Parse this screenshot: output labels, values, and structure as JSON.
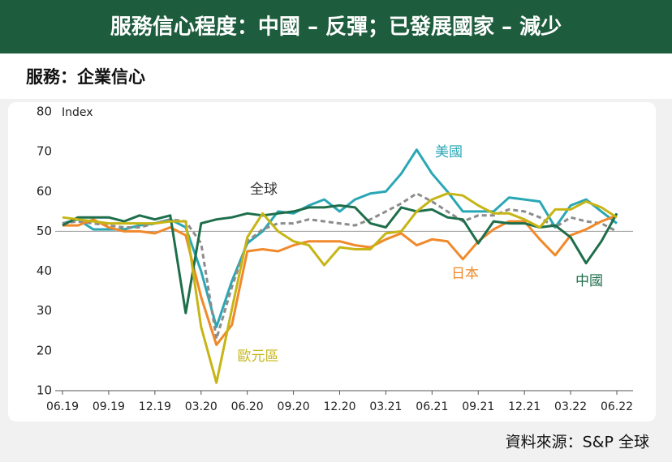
{
  "chart_data": {
    "type": "line",
    "title": "服務信心程度：中國 – 反彈；已發展國家 – 減少",
    "subtitle": "服務：企業信心",
    "y_label": "Index",
    "source": "資料來源：S&P 全球",
    "categories": [
      "06.19",
      null,
      null,
      "09.19",
      null,
      null,
      "12.19",
      null,
      null,
      "03.20",
      null,
      null,
      "06.20",
      null,
      null,
      "09.20",
      null,
      null,
      "12.20",
      null,
      null,
      "03.21",
      null,
      null,
      "06.21",
      null,
      null,
      "09.21",
      null,
      null,
      "12.21",
      null,
      null,
      "03.22",
      null,
      null,
      "06.22"
    ],
    "ylim": [
      10,
      80
    ],
    "yticks": [
      10,
      20,
      30,
      40,
      50,
      60,
      70,
      80
    ],
    "hline": 50,
    "series": [
      {
        "name": "美國",
        "color": "#2aa7b5",
        "values": [
          52,
          53,
          50.5,
          50.5,
          50.5,
          51.5,
          52,
          53,
          51,
          40,
          26,
          37.5,
          47,
          50,
          55,
          54.5,
          56.5,
          58,
          55,
          58,
          59.5,
          60,
          64.5,
          70.5,
          64.5,
          60,
          55,
          55,
          55,
          58.5,
          58,
          57.5,
          51,
          56.5,
          58,
          55,
          52
        ]
      },
      {
        "name": "全球",
        "color": "#8c8c8c",
        "dashed": true,
        "values": [
          52,
          52.5,
          52,
          51.5,
          51,
          51,
          52,
          53,
          52.5,
          47,
          23,
          36,
          47.5,
          50.5,
          52,
          52,
          53,
          52.5,
          52,
          51.5,
          53,
          55,
          57,
          59.5,
          57.5,
          55,
          52.5,
          54,
          54,
          55.5,
          55,
          53.5,
          51,
          53.5,
          52.5,
          52,
          50
        ]
      },
      {
        "name": "日本",
        "color": "#f0892a",
        "values": [
          51.5,
          51.5,
          53,
          51,
          50,
          50,
          49.5,
          51,
          49,
          33.5,
          21.5,
          26.5,
          45,
          45.5,
          45,
          46.5,
          47.5,
          47.5,
          47.5,
          46.5,
          46,
          48,
          49.5,
          46.5,
          48,
          47.5,
          43,
          47.5,
          50.5,
          52.5,
          52.5,
          48,
          44,
          49,
          50.5,
          52.5,
          54
        ]
      },
      {
        "name": "中國",
        "color": "#1e6e4b",
        "values": [
          51.5,
          53.5,
          53.5,
          53.5,
          52.5,
          54,
          53,
          54,
          29.5,
          52,
          53,
          53.5,
          54.5,
          54,
          54.5,
          55,
          56,
          56,
          56.5,
          56,
          52,
          51,
          56,
          55,
          55.5,
          53.5,
          53,
          47,
          52.5,
          52,
          52,
          51,
          51.5,
          48.5,
          42,
          47.5,
          54.5
        ]
      },
      {
        "name": "歐元區",
        "color": "#c6b515",
        "values": [
          53.5,
          53,
          52.5,
          52,
          52,
          52,
          52,
          52.5,
          52.5,
          26,
          12,
          30.5,
          48.5,
          54.5,
          50,
          47.5,
          46.5,
          41.5,
          46,
          45.5,
          45.5,
          49.5,
          50,
          55,
          58,
          59.5,
          59,
          56.5,
          54.5,
          54.5,
          53,
          51,
          55.5,
          55.5,
          57.5,
          56,
          53.5
        ]
      }
    ]
  }
}
